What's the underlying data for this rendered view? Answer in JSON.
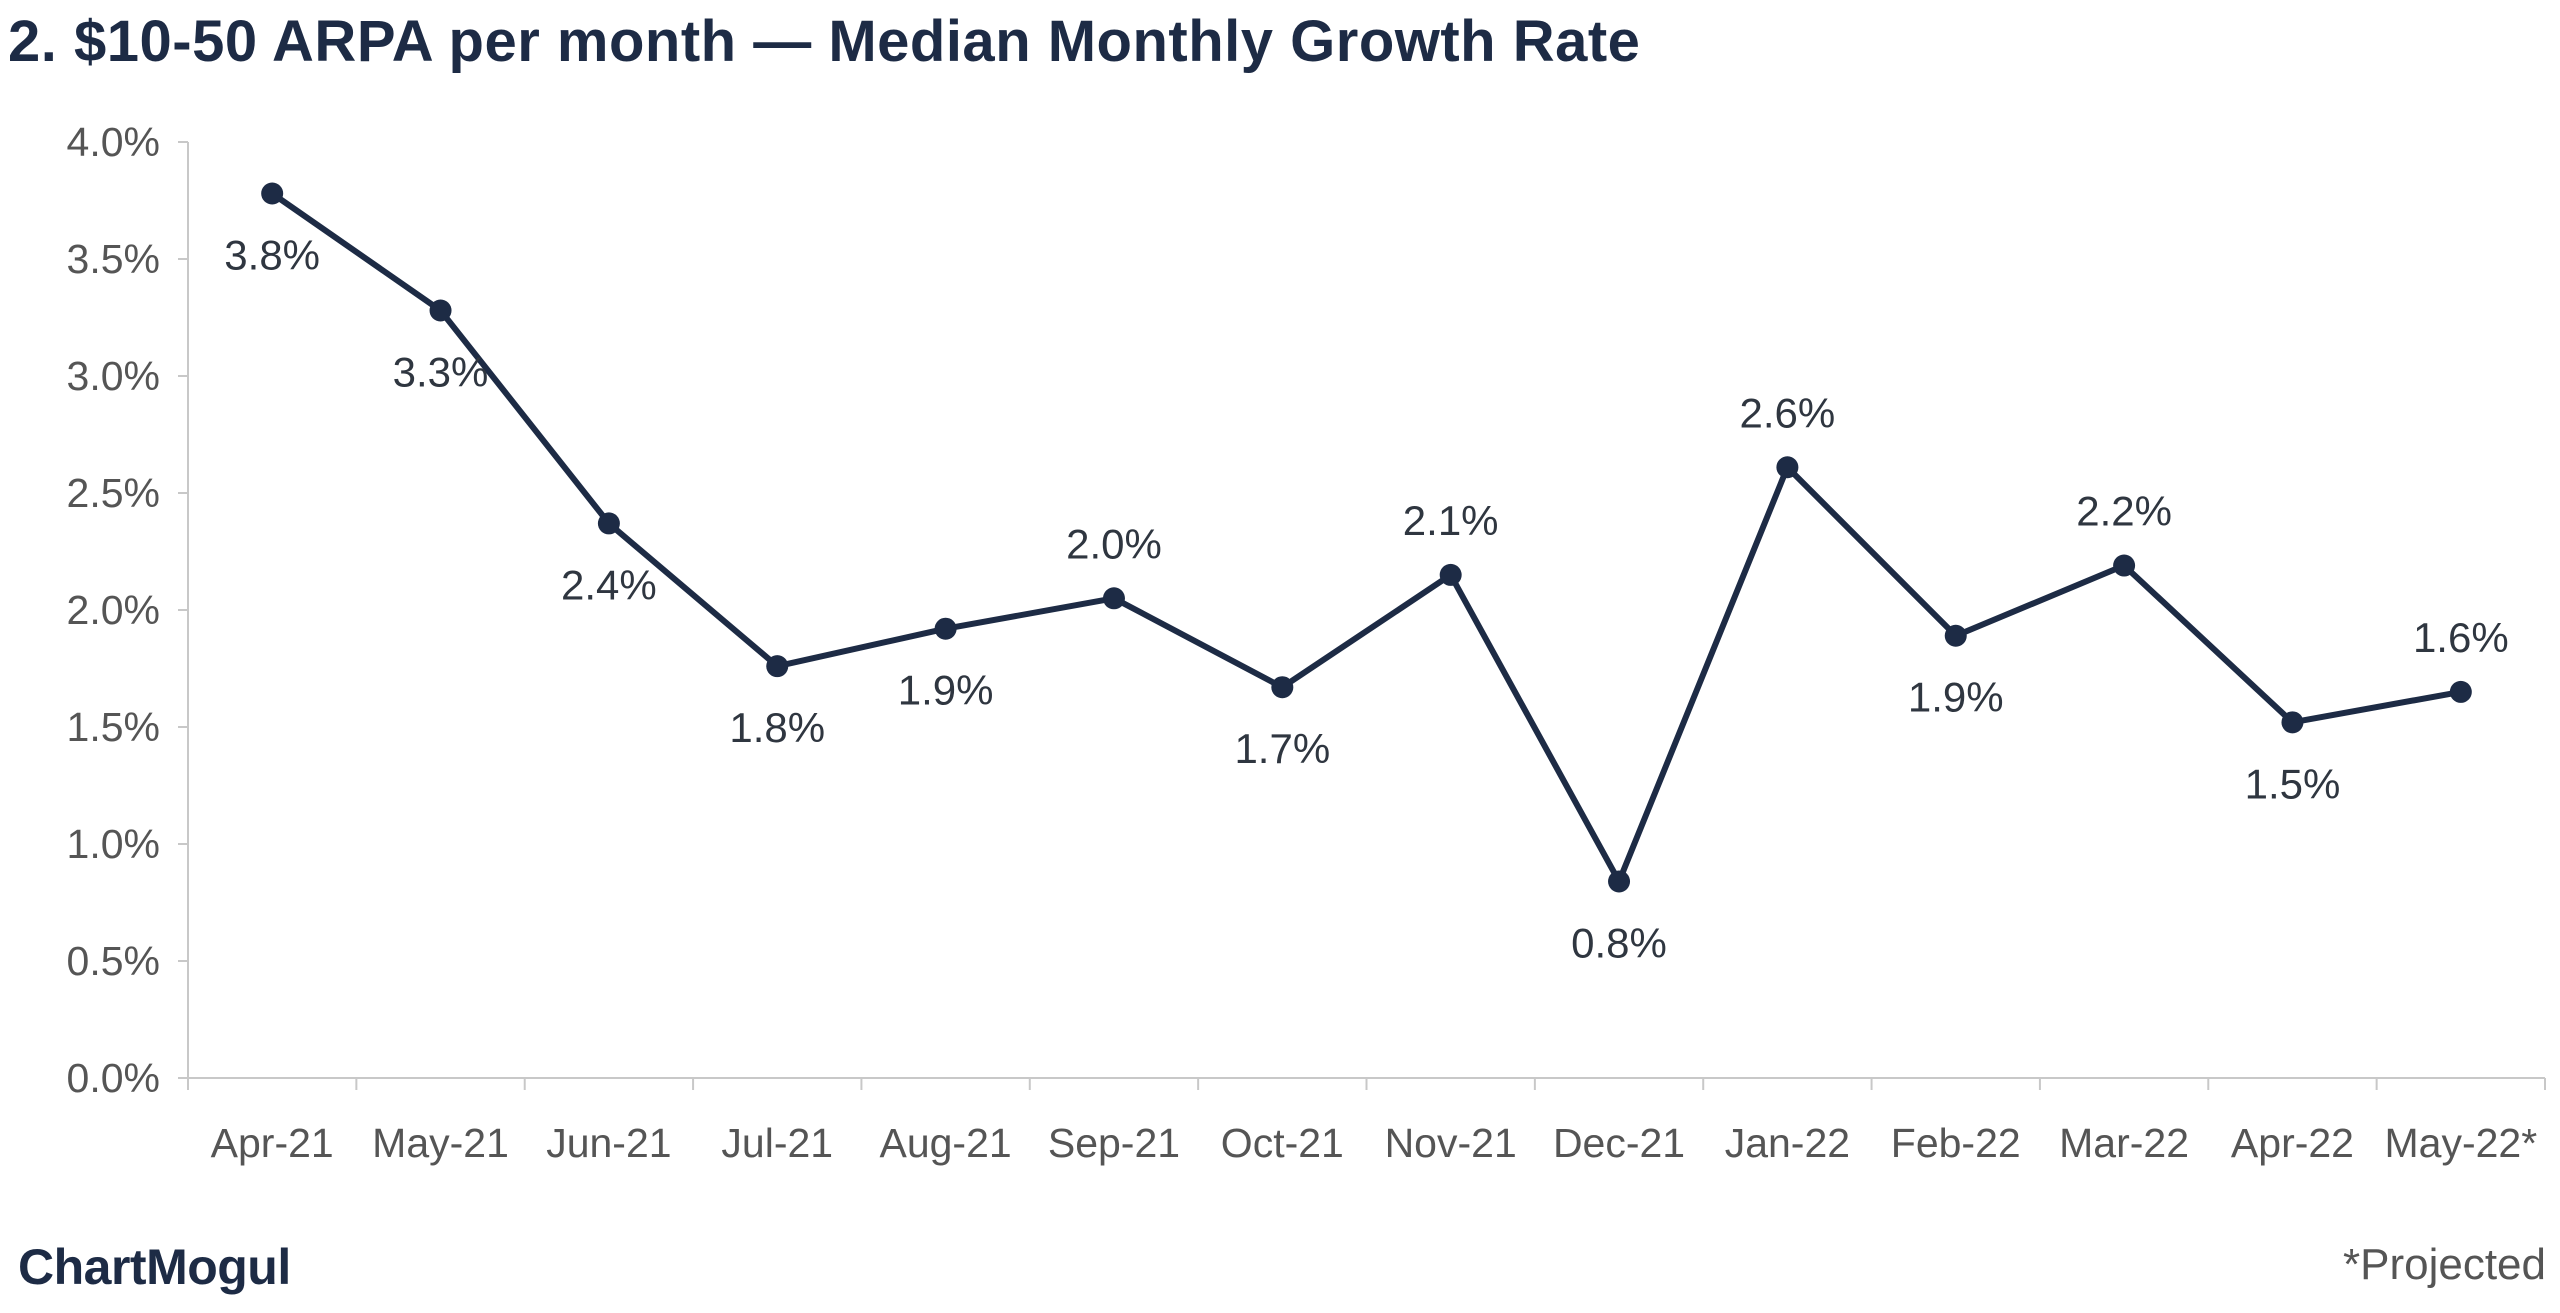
{
  "title": "2. $10-50 ARPA per month — Median Monthly Growth Rate",
  "brand": "ChartMogul",
  "footnote": "*Projected",
  "colors": {
    "line": "#1d2b45",
    "axis": "#c8c8c8",
    "text": "#555555"
  },
  "chart_data": {
    "type": "line",
    "title": "2. $10-50 ARPA per month — Median Monthly Growth Rate",
    "xlabel": "",
    "ylabel": "",
    "ylim": [
      0,
      4.0
    ],
    "yticks": [
      {
        "value": 0.0,
        "label": "0.0%"
      },
      {
        "value": 0.5,
        "label": "0.5%"
      },
      {
        "value": 1.0,
        "label": "1.0%"
      },
      {
        "value": 1.5,
        "label": "1.5%"
      },
      {
        "value": 2.0,
        "label": "2.0%"
      },
      {
        "value": 2.5,
        "label": "2.5%"
      },
      {
        "value": 3.0,
        "label": "3.0%"
      },
      {
        "value": 3.5,
        "label": "3.5%"
      },
      {
        "value": 4.0,
        "label": "4.0%"
      }
    ],
    "grid": false,
    "legend": "none",
    "categories": [
      "Apr-21",
      "May-21",
      "Jun-21",
      "Jul-21",
      "Aug-21",
      "Sep-21",
      "Oct-21",
      "Nov-21",
      "Dec-21",
      "Jan-22",
      "Feb-22",
      "Mar-22",
      "Apr-22",
      "May-22*"
    ],
    "series": [
      {
        "values": [
          3.78,
          3.28,
          2.37,
          1.76,
          1.92,
          2.05,
          1.67,
          2.15,
          0.84,
          2.61,
          1.89,
          2.19,
          1.52,
          1.65
        ],
        "labels": [
          "3.8%",
          "3.3%",
          "2.4%",
          "1.8%",
          "1.9%",
          "2.0%",
          "1.7%",
          "2.1%",
          "0.8%",
          "2.6%",
          "1.9%",
          "2.2%",
          "1.5%",
          "1.6%"
        ]
      }
    ]
  }
}
